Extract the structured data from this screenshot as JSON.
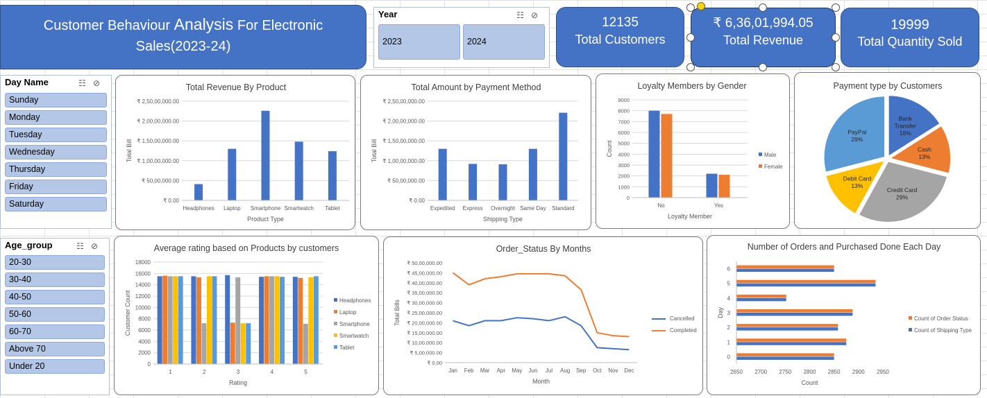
{
  "header": {
    "title_part1": "Customer Behaviour ",
    "title_part2": "Analysis",
    "title_part3": " For Electronic",
    "title_line2": "Sales(2023-24)"
  },
  "year_slicer": {
    "title": "Year",
    "items": [
      "2023",
      "2024"
    ]
  },
  "kpis": [
    {
      "value": "12135",
      "label": "Total Customers"
    },
    {
      "value": "₹ 6,36,01,994.05",
      "label": "Total Revenue"
    },
    {
      "value": "19999",
      "label": "Total Quantity Sold"
    }
  ],
  "day_slicer": {
    "title": "Day Name",
    "items": [
      "Sunday",
      "Monday",
      "Tuesday",
      "Wednesday",
      "Thursday",
      "Friday",
      "Saturday"
    ]
  },
  "age_slicer": {
    "title": "Age_group",
    "items": [
      "20-30",
      "30-40",
      "40-50",
      "50-60",
      "60-70",
      "Above 70",
      "Under 20"
    ]
  },
  "colors": {
    "blue": "#4472c4",
    "orange": "#ed7d31",
    "gray": "#a5a5a5",
    "yellow": "#ffc000",
    "lightblue": "#5b9bd5"
  },
  "chart_data": [
    {
      "id": "revenue_by_product",
      "type": "bar",
      "title": "Total Revenue By Product",
      "xlabel": "Product Type",
      "ylabel": "Total Bill",
      "categories": [
        "Headphones",
        "Laptop",
        "Smartphone",
        "Smartwatch",
        "Tablet"
      ],
      "series": [
        {
          "values": [
            4100000,
            13000000,
            22600000,
            14800000,
            12400000
          ]
        }
      ],
      "ylim": [
        0,
        25000000
      ],
      "yticks": [
        0,
        5000000,
        10000000,
        15000000,
        20000000,
        25000000
      ],
      "ytick_labels": [
        "₹ 0.00",
        "₹ 50,00,000.00",
        "₹ 1,00,00,000.00",
        "₹ 1,50,00,000.00",
        "₹ 2,00,00,000.00",
        "₹ 2,50,00,000.00"
      ]
    },
    {
      "id": "amount_by_payment",
      "type": "bar",
      "title": "Total Amount by Payment Method",
      "xlabel": "Shipping Type",
      "ylabel": "Total Bill",
      "categories": [
        "Expedited",
        "Express",
        "Overnight",
        "Same Day",
        "Standard"
      ],
      "series": [
        {
          "values": [
            13000000,
            9200000,
            9100000,
            13000000,
            22100000
          ]
        }
      ],
      "ylim": [
        0,
        25000000
      ],
      "yticks": [
        0,
        5000000,
        10000000,
        15000000,
        20000000,
        25000000
      ],
      "ytick_labels": [
        "₹ 0.00",
        "₹ 50,00,000.00",
        "₹ 1,00,00,000.00",
        "₹ 1,50,00,000.00",
        "₹ 2,00,00,000.00",
        "₹ 2,50,00,000.00"
      ]
    },
    {
      "id": "loyalty_by_gender",
      "type": "bar",
      "title": "Loyalty Members by Gender",
      "xlabel": "Loyalty Member",
      "ylabel": "Count",
      "categories": [
        "No",
        "Yes"
      ],
      "series": [
        {
          "name": "Male",
          "values": [
            8000,
            2200
          ]
        },
        {
          "name": "Female",
          "values": [
            7700,
            2100
          ]
        }
      ],
      "ylim": [
        0,
        9000
      ],
      "yticks": [
        0,
        1000,
        2000,
        3000,
        4000,
        5000,
        6000,
        7000,
        8000,
        9000
      ],
      "ytick_labels": [
        "0",
        "1000",
        "2000",
        "3000",
        "4000",
        "5000",
        "6000",
        "7000",
        "8000",
        "9000"
      ],
      "legend": "right"
    },
    {
      "id": "payment_type",
      "type": "pie",
      "title": "Payment type by Customers",
      "slices": [
        {
          "label": "Bank Transfer",
          "value": 16,
          "text": "16%"
        },
        {
          "label": "Cash",
          "value": 13,
          "text": "13%"
        },
        {
          "label": "Credit Card",
          "value": 29,
          "text": "29%"
        },
        {
          "label": "Debit Card",
          "value": 13,
          "text": "13%"
        },
        {
          "label": "PayPal",
          "value": 29,
          "text": "29%"
        }
      ]
    },
    {
      "id": "avg_rating",
      "type": "bar",
      "title": "Average rating based on Products by customers",
      "xlabel": "Rating",
      "ylabel": "Customer Count",
      "categories": [
        "1",
        "2",
        "3",
        "4",
        "5"
      ],
      "series": [
        {
          "name": "Headphones",
          "values": [
            15500,
            15500,
            15700,
            15400,
            15400
          ]
        },
        {
          "name": "Laptop",
          "values": [
            15600,
            15300,
            7300,
            15500,
            15200
          ]
        },
        {
          "name": "Smartphone",
          "values": [
            15500,
            7200,
            15300,
            15500,
            7100
          ]
        },
        {
          "name": "Smartwatch",
          "values": [
            15500,
            15500,
            7200,
            15500,
            15300
          ]
        },
        {
          "name": "Tablet",
          "values": [
            15500,
            15500,
            7200,
            15400,
            15500
          ]
        }
      ],
      "ylim": [
        0,
        18000
      ],
      "yticks": [
        0,
        2000,
        4000,
        6000,
        8000,
        10000,
        12000,
        14000,
        16000,
        18000
      ],
      "ytick_labels": [
        "0",
        "2000",
        "4000",
        "6000",
        "8000",
        "10000",
        "12000",
        "14000",
        "16000",
        "18000"
      ],
      "legend": "right"
    },
    {
      "id": "order_status",
      "type": "line",
      "title": "Order_Status By Months",
      "xlabel": "Month",
      "ylabel": "Total Bills",
      "categories": [
        "Jan",
        "Feb",
        "Mar",
        "Apr",
        "May",
        "Jun",
        "Jul",
        "Aug",
        "Sep",
        "Oct",
        "Nov",
        "Dec"
      ],
      "series": [
        {
          "name": "Cancelled",
          "values": [
            2100000,
            1850000,
            2100000,
            2100000,
            2250000,
            2200000,
            2100000,
            2300000,
            1850000,
            750000,
            700000,
            650000
          ]
        },
        {
          "name": "Completed",
          "values": [
            4500000,
            3900000,
            4200000,
            4300000,
            4450000,
            4450000,
            4450000,
            4350000,
            3650000,
            1500000,
            1350000,
            1300000
          ]
        }
      ],
      "ylim": [
        0,
        5000000
      ],
      "yticks": [
        0,
        500000,
        1000000,
        1500000,
        2000000,
        2500000,
        3000000,
        3500000,
        4000000,
        4500000,
        5000000
      ],
      "ytick_labels": [
        "₹ 0.00",
        "₹ 5,00,000.00",
        "₹ 10,00,000.00",
        "₹ 15,00,000.00",
        "₹ 20,00,000.00",
        "₹ 25,00,000.00",
        "₹ 30,00,000.00",
        "₹ 35,00,000.00",
        "₹ 40,00,000.00",
        "₹ 45,00,000.00",
        "₹ 50,00,000.00"
      ],
      "legend": "right"
    },
    {
      "id": "orders_each_day",
      "type": "bar",
      "title": "Number of Orders and Purchased Done Each Day",
      "xlabel": "Count",
      "ylabel": "Day",
      "orientation": "horizontal",
      "categories": [
        "0",
        "1",
        "2",
        "3",
        "4",
        "5",
        "6"
      ],
      "series": [
        {
          "name": "Count of Shipping Type",
          "values": [
            2850,
            2875,
            2858,
            2888,
            2752,
            2935,
            2850
          ]
        },
        {
          "name": "Count of Order Status",
          "values": [
            2850,
            2875,
            2858,
            2888,
            2752,
            2935,
            2850
          ]
        }
      ],
      "xlim": [
        2650,
        2950
      ],
      "xticks": [
        2650,
        2700,
        2750,
        2800,
        2850,
        2900,
        2950
      ],
      "xtick_labels": [
        "2650",
        "2700",
        "2750",
        "2800",
        "2850",
        "2900",
        "2950"
      ],
      "legend": "right"
    }
  ]
}
